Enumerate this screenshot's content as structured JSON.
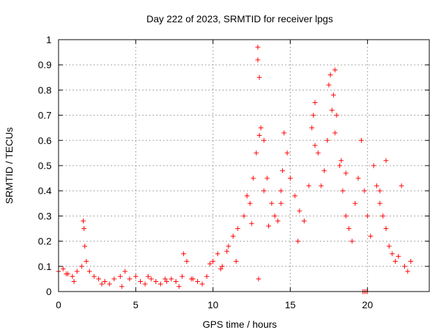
{
  "chart_data": {
    "type": "scatter",
    "title": "Day 222 of 2023, SRMTID for receiver lpgs",
    "xlabel": "GPS time / hours",
    "ylabel": "SRMTID / TECUs",
    "xlim": [
      0,
      24
    ],
    "ylim": [
      0,
      1
    ],
    "x_ticks": [
      0,
      5,
      10,
      15,
      20
    ],
    "x_tick_labels": [
      "0",
      "5",
      "10",
      "15",
      "20"
    ],
    "y_ticks": [
      0,
      0.1,
      0.2,
      0.3,
      0.4,
      0.5,
      0.6,
      0.7,
      0.8,
      0.9,
      1
    ],
    "y_tick_labels": [
      "0",
      "0.1",
      "0.2",
      "0.3",
      "0.4",
      "0.5",
      "0.6",
      "0.7",
      "0.8",
      "0.9",
      "1"
    ],
    "grid": true,
    "marker": "+",
    "marker_color": "#ff0000",
    "series": [
      {
        "name": "SRMTID",
        "x": [
          0.0,
          0.3,
          0.6,
          0.9,
          1.2,
          1.5,
          1.6,
          1.65,
          1.7,
          1.8,
          2.0,
          2.3,
          2.6,
          3.0,
          3.3,
          3.6,
          4.0,
          4.3,
          4.6,
          5.0,
          5.3,
          5.6,
          6.0,
          6.3,
          6.6,
          7.0,
          7.3,
          7.6,
          8.0,
          8.1,
          8.3,
          8.6,
          9.0,
          9.3,
          9.6,
          10.0,
          10.3,
          10.6,
          11.0,
          11.3,
          11.6,
          12.0,
          12.2,
          12.4,
          12.6,
          12.8,
          12.9,
          13.0,
          13.1,
          13.3,
          13.5,
          13.8,
          14.0,
          14.2,
          14.4,
          14.6,
          14.8,
          15.0,
          15.3,
          15.6,
          15.9,
          16.2,
          16.4,
          16.6,
          16.8,
          17.0,
          17.2,
          17.4,
          17.6,
          17.8,
          17.9,
          18.0,
          18.2,
          18.4,
          18.6,
          18.8,
          19.0,
          19.2,
          19.4,
          19.6,
          19.8,
          20.0,
          20.2,
          20.4,
          20.6,
          20.8,
          21.0,
          21.2,
          21.4,
          21.6,
          21.8,
          22.0,
          22.2,
          22.4,
          22.6,
          22.8,
          19.7,
          19.8,
          19.9,
          20.0,
          12.9,
          13.0,
          12.95,
          17.5,
          17.7,
          17.9,
          16.5,
          16.6,
          14.4,
          14.5,
          18.3,
          18.6,
          13.3,
          13.6,
          15.5,
          12.5,
          20.8,
          21.2,
          10.5,
          11.5,
          0.5,
          1.0,
          2.8,
          4.1,
          5.8,
          6.9,
          7.8,
          8.7,
          9.8,
          10.9
        ],
        "y": [
          0.08,
          0.09,
          0.07,
          0.06,
          0.08,
          0.1,
          0.28,
          0.25,
          0.18,
          0.12,
          0.08,
          0.06,
          0.05,
          0.04,
          0.03,
          0.05,
          0.06,
          0.08,
          0.05,
          0.06,
          0.04,
          0.03,
          0.05,
          0.04,
          0.03,
          0.04,
          0.05,
          0.04,
          0.06,
          0.15,
          0.12,
          0.05,
          0.04,
          0.03,
          0.06,
          0.12,
          0.15,
          0.1,
          0.18,
          0.22,
          0.25,
          0.3,
          0.38,
          0.35,
          0.45,
          0.55,
          0.97,
          0.85,
          0.65,
          0.6,
          0.45,
          0.35,
          0.3,
          0.28,
          0.4,
          0.63,
          0.55,
          0.45,
          0.38,
          0.32,
          0.28,
          0.42,
          0.65,
          0.75,
          0.55,
          0.42,
          0.48,
          0.6,
          0.86,
          0.78,
          0.88,
          0.7,
          0.5,
          0.4,
          0.3,
          0.25,
          0.2,
          0.35,
          0.45,
          0.6,
          0.4,
          0.3,
          0.22,
          0.5,
          0.42,
          0.35,
          0.3,
          0.25,
          0.18,
          0.15,
          0.12,
          0.14,
          0.42,
          0.1,
          0.08,
          0.12,
          0.0,
          0.0,
          0.0,
          0.0,
          0.92,
          0.62,
          0.05,
          0.82,
          0.72,
          0.63,
          0.7,
          0.58,
          0.35,
          0.48,
          0.52,
          0.47,
          0.4,
          0.26,
          0.2,
          0.27,
          0.4,
          0.52,
          0.09,
          0.12,
          0.07,
          0.04,
          0.03,
          0.02,
          0.06,
          0.05,
          0.02,
          0.05,
          0.11,
          0.16
        ]
      }
    ]
  }
}
